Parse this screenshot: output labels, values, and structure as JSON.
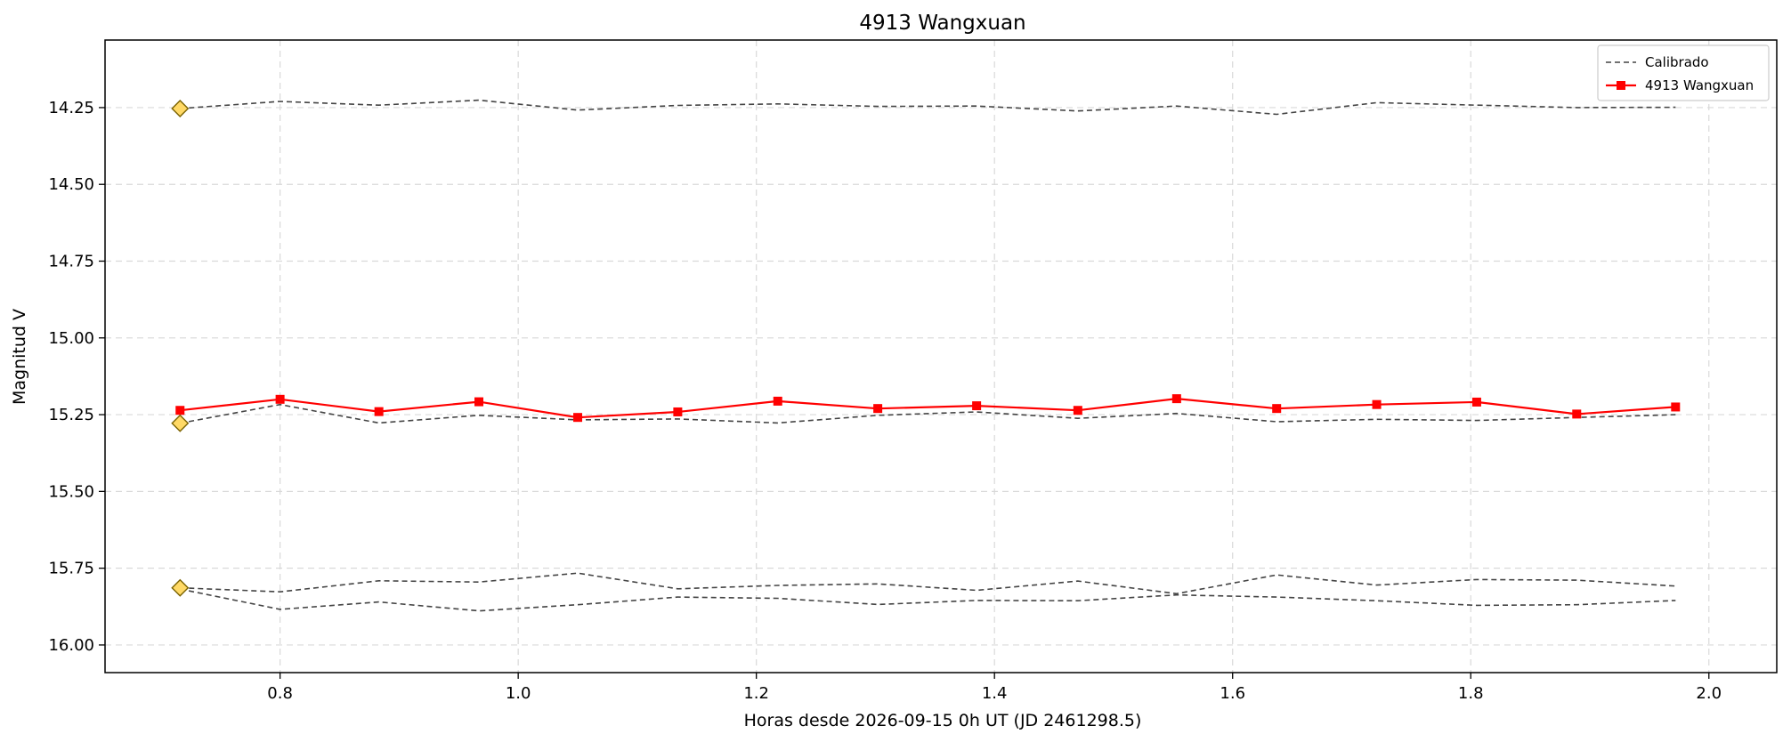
{
  "chart_data": {
    "type": "line",
    "title": "4913 Wangxuan",
    "xlabel": "Horas desde 2026-09-15 0h UT (JD 2461298.5)",
    "ylabel": "Magnitud V",
    "xlim": [
      0.653,
      2.057
    ],
    "ylim": [
      16.09,
      14.03
    ],
    "y_inverted": true,
    "grid": true,
    "legend_position": "top-right",
    "x_ticks": [
      0.8,
      1.0,
      1.2,
      1.4,
      1.6,
      1.8,
      2.0
    ],
    "x_tick_labels": [
      "0.8",
      "1.0",
      "1.2",
      "1.4",
      "1.6",
      "1.8",
      "2.0"
    ],
    "y_ticks": [
      14.25,
      14.5,
      14.75,
      15.0,
      15.25,
      15.5,
      15.75,
      16.0
    ],
    "y_tick_labels": [
      "14.25",
      "14.50",
      "14.75",
      "15.00",
      "15.25",
      "15.50",
      "15.75",
      "16.00"
    ],
    "x": [
      0.716,
      0.8,
      0.883,
      0.967,
      1.05,
      1.134,
      1.218,
      1.302,
      1.385,
      1.47,
      1.553,
      1.637,
      1.721,
      1.805,
      1.889,
      1.972
    ],
    "legend": [
      {
        "label": "Calibrado",
        "style": "dashed",
        "color": "#444444"
      },
      {
        "label": "4913 Wangxuan",
        "style": "solid-square",
        "color": "#ff0000"
      }
    ],
    "series": [
      {
        "name": "4913 Wangxuan",
        "kind": "target",
        "color": "#ff0000",
        "values": [
          15.236,
          15.2,
          15.24,
          15.208,
          15.259,
          15.241,
          15.206,
          15.23,
          15.221,
          15.236,
          15.198,
          15.23,
          15.217,
          15.209,
          15.248,
          15.225
        ]
      },
      {
        "kind": "reference",
        "color": "#444444",
        "values": [
          14.253,
          14.23,
          14.242,
          14.226,
          14.258,
          14.243,
          14.238,
          14.246,
          14.245,
          14.261,
          14.245,
          14.272,
          14.234,
          14.242,
          14.25,
          14.249
        ]
      },
      {
        "kind": "reference",
        "color": "#444444",
        "values": [
          15.278,
          15.217,
          15.277,
          15.252,
          15.267,
          15.264,
          15.277,
          15.252,
          15.241,
          15.262,
          15.246,
          15.273,
          15.265,
          15.269,
          15.259,
          15.25
        ]
      },
      {
        "kind": "reference",
        "color": "#444444",
        "values": [
          15.814,
          15.827,
          15.791,
          15.795,
          15.766,
          15.817,
          15.806,
          15.801,
          15.822,
          15.792,
          15.833,
          15.772,
          15.805,
          15.787,
          15.789,
          15.808
        ]
      },
      {
        "kind": "reference",
        "color": "#444444",
        "values": [
          15.818,
          15.884,
          15.86,
          15.889,
          15.869,
          15.844,
          15.848,
          15.868,
          15.855,
          15.856,
          15.837,
          15.844,
          15.856,
          15.871,
          15.869,
          15.855
        ]
      }
    ],
    "start_markers": {
      "color": "#ffd966",
      "edge_color": "#7a6200",
      "values": [
        14.253,
        15.278,
        15.814
      ]
    }
  }
}
